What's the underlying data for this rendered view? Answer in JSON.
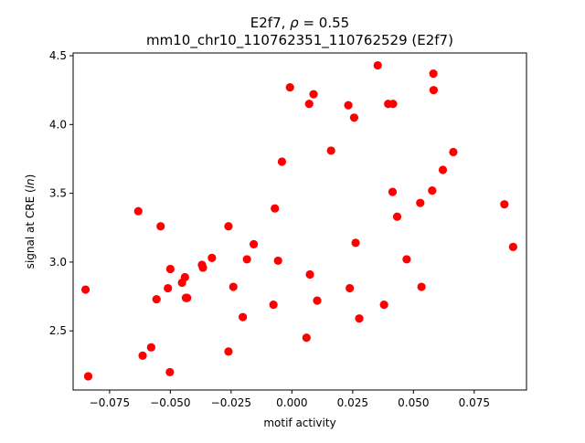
{
  "chart_data": {
    "type": "scatter",
    "title_line1_prefix": "E2f7, ",
    "title_line1_rho": "ρ",
    "title_line1_suffix": " = 0.55",
    "title_line2": "mm10_chr10_110762351_110762529 (E2f7)",
    "xlabel": "motif activity",
    "ylabel_prefix": "signal at CRE (",
    "ylabel_italic": "ln",
    "ylabel_suffix": ")",
    "xlim": [
      -0.09,
      0.0965
    ],
    "ylim": [
      2.07,
      4.52
    ],
    "xticks": [
      {
        "value": -0.075,
        "label": "−0.075"
      },
      {
        "value": -0.05,
        "label": "−0.050"
      },
      {
        "value": -0.025,
        "label": "−0.025"
      },
      {
        "value": 0.0,
        "label": "0.000"
      },
      {
        "value": 0.025,
        "label": "0.025"
      },
      {
        "value": 0.05,
        "label": "0.050"
      },
      {
        "value": 0.075,
        "label": "0.075"
      }
    ],
    "yticks": [
      {
        "value": 2.5,
        "label": "2.5"
      },
      {
        "value": 3.0,
        "label": "3.0"
      },
      {
        "value": 3.5,
        "label": "3.5"
      },
      {
        "value": 4.0,
        "label": "4.0"
      },
      {
        "value": 4.5,
        "label": "4.5"
      }
    ],
    "grid": false,
    "marker_color": "#ff0000",
    "points": [
      {
        "x": -0.0849,
        "y": 2.8
      },
      {
        "x": -0.0838,
        "y": 2.17
      },
      {
        "x": -0.0632,
        "y": 3.37
      },
      {
        "x": -0.0614,
        "y": 2.32
      },
      {
        "x": -0.0579,
        "y": 2.38
      },
      {
        "x": -0.0557,
        "y": 2.73
      },
      {
        "x": -0.054,
        "y": 3.26
      },
      {
        "x": -0.051,
        "y": 2.81
      },
      {
        "x": -0.05,
        "y": 2.95
      },
      {
        "x": -0.0502,
        "y": 2.2
      },
      {
        "x": -0.0452,
        "y": 2.85
      },
      {
        "x": -0.044,
        "y": 2.89
      },
      {
        "x": -0.0431,
        "y": 2.74
      },
      {
        "x": -0.0436,
        "y": 2.74
      },
      {
        "x": -0.037,
        "y": 2.98
      },
      {
        "x": -0.0366,
        "y": 2.96
      },
      {
        "x": -0.0329,
        "y": 3.03
      },
      {
        "x": -0.0261,
        "y": 3.26
      },
      {
        "x": -0.0261,
        "y": 2.35
      },
      {
        "x": -0.0241,
        "y": 2.82
      },
      {
        "x": -0.0202,
        "y": 2.6
      },
      {
        "x": -0.0185,
        "y": 3.02
      },
      {
        "x": -0.0157,
        "y": 3.13
      },
      {
        "x": -0.0076,
        "y": 2.69
      },
      {
        "x": -0.007,
        "y": 3.39
      },
      {
        "x": -0.0057,
        "y": 3.01
      },
      {
        "x": -0.0041,
        "y": 3.73
      },
      {
        "x": -0.0008,
        "y": 4.27
      },
      {
        "x": 0.006,
        "y": 2.45
      },
      {
        "x": 0.0071,
        "y": 4.15
      },
      {
        "x": 0.0074,
        "y": 2.91
      },
      {
        "x": 0.0089,
        "y": 4.22
      },
      {
        "x": 0.0104,
        "y": 2.72
      },
      {
        "x": 0.0161,
        "y": 3.81
      },
      {
        "x": 0.0232,
        "y": 4.14
      },
      {
        "x": 0.0238,
        "y": 2.81
      },
      {
        "x": 0.0256,
        "y": 4.05
      },
      {
        "x": 0.0262,
        "y": 3.14
      },
      {
        "x": 0.0277,
        "y": 2.59
      },
      {
        "x": 0.0353,
        "y": 4.43
      },
      {
        "x": 0.0379,
        "y": 2.69
      },
      {
        "x": 0.0396,
        "y": 4.15
      },
      {
        "x": 0.0414,
        "y": 3.51
      },
      {
        "x": 0.0416,
        "y": 4.15
      },
      {
        "x": 0.0433,
        "y": 3.33
      },
      {
        "x": 0.0472,
        "y": 3.02
      },
      {
        "x": 0.0528,
        "y": 3.43
      },
      {
        "x": 0.0533,
        "y": 2.82
      },
      {
        "x": 0.0577,
        "y": 3.52
      },
      {
        "x": 0.0582,
        "y": 4.37
      },
      {
        "x": 0.0583,
        "y": 4.25
      },
      {
        "x": 0.0621,
        "y": 3.67
      },
      {
        "x": 0.0664,
        "y": 3.8
      },
      {
        "x": 0.0874,
        "y": 3.42
      },
      {
        "x": 0.091,
        "y": 3.11
      }
    ]
  }
}
